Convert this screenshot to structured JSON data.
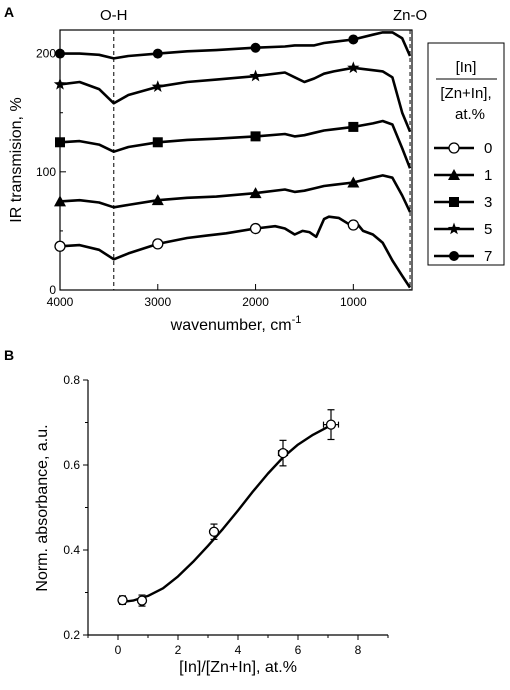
{
  "chart_data": [
    {
      "panel": "A",
      "type": "line",
      "xlabel": "wavenumber, cm",
      "xlabel_sup": "-1",
      "ylabel": "IR transmision, %",
      "xlim": [
        4000,
        400
      ],
      "ylim": [
        0,
        220
      ],
      "xticks": [
        4000,
        3000,
        2000,
        1000
      ],
      "yticks": [
        0,
        100,
        200
      ],
      "annotations": [
        {
          "text": "O-H",
          "x": 3450
        },
        {
          "text": "Zn-O",
          "x": 420
        }
      ],
      "legend": {
        "title_numerator": "[In]",
        "title_denominator": "[Zn+In],",
        "title_unit": "at.%",
        "placement": "right"
      },
      "series": [
        {
          "name": "0",
          "marker": "open-circle",
          "x": [
            4000,
            3800,
            3600,
            3450,
            3300,
            3000,
            2700,
            2500,
            2300,
            2000,
            1800,
            1700,
            1600,
            1520,
            1450,
            1380,
            1300,
            1250,
            1150,
            1050,
            1000,
            950,
            900,
            800,
            700,
            600,
            500,
            420
          ],
          "y": [
            37,
            38,
            34,
            26,
            31,
            39,
            44,
            46,
            48,
            52,
            54,
            52,
            47,
            50,
            49,
            45,
            60,
            62,
            61,
            56,
            55,
            55,
            50,
            47,
            40,
            25,
            12,
            2
          ],
          "marker_x": [
            4000,
            3000,
            2000,
            1000
          ]
        },
        {
          "name": "1",
          "marker": "filled-triangle",
          "x": [
            4000,
            3800,
            3600,
            3450,
            3300,
            3000,
            2700,
            2400,
            2000,
            1700,
            1600,
            1500,
            1400,
            1300,
            1200,
            1000,
            800,
            700,
            600,
            500,
            420
          ],
          "y": [
            75,
            76,
            74,
            70,
            72,
            76,
            78,
            79,
            82,
            85,
            83,
            84,
            86,
            88,
            89,
            91,
            95,
            97,
            95,
            80,
            66
          ],
          "marker_x": [
            4000,
            3000,
            2000,
            1000
          ]
        },
        {
          "name": "3",
          "marker": "filled-square",
          "x": [
            4000,
            3800,
            3600,
            3450,
            3300,
            3000,
            2700,
            2400,
            2000,
            1700,
            1600,
            1500,
            1400,
            1300,
            1200,
            1000,
            800,
            700,
            600,
            500,
            420
          ],
          "y": [
            125,
            126,
            123,
            117,
            121,
            125,
            127,
            128,
            130,
            132,
            130,
            131,
            133,
            135,
            136,
            138,
            141,
            143,
            140,
            120,
            103
          ],
          "marker_x": [
            4000,
            3000,
            2000,
            1000
          ]
        },
        {
          "name": "5",
          "marker": "filled-star",
          "x": [
            4000,
            3800,
            3600,
            3450,
            3300,
            3000,
            2700,
            2400,
            2000,
            1700,
            1600,
            1500,
            1400,
            1300,
            1200,
            1000,
            800,
            700,
            600,
            500,
            420
          ],
          "y": [
            174,
            176,
            170,
            158,
            165,
            172,
            176,
            178,
            181,
            184,
            180,
            176,
            179,
            183,
            185,
            188,
            186,
            185,
            180,
            150,
            134
          ],
          "marker_x": [
            4000,
            3000,
            2000,
            1000
          ]
        },
        {
          "name": "7",
          "marker": "filled-circle",
          "x": [
            4000,
            3800,
            3600,
            3450,
            3300,
            3000,
            2700,
            2400,
            2000,
            1700,
            1600,
            1400,
            1300,
            1200,
            1000,
            800,
            700,
            600,
            500,
            420
          ],
          "y": [
            200,
            200,
            199,
            196,
            198,
            200,
            202,
            203,
            205,
            206,
            207,
            207,
            209,
            210,
            212,
            216,
            218,
            218,
            213,
            198
          ],
          "marker_x": [
            4000,
            3000,
            2000,
            1000
          ]
        }
      ]
    },
    {
      "panel": "B",
      "type": "scatter",
      "xlabel": "[In]/[Zn+In], at.%",
      "ylabel": "Norm. absorbance, a.u.",
      "xlim": [
        -1,
        9
      ],
      "ylim": [
        0.2,
        0.8
      ],
      "xticks": [
        0,
        2,
        4,
        6,
        8
      ],
      "yticks": [
        0.2,
        0.4,
        0.6,
        0.8
      ],
      "points": [
        {
          "x": 0.15,
          "y": 0.282,
          "yerr": 0.01,
          "xerr": 0.1
        },
        {
          "x": 0.8,
          "y": 0.281,
          "yerr": 0.013,
          "xerr": 0.1
        },
        {
          "x": 3.2,
          "y": 0.443,
          "yerr": 0.018,
          "xerr": 0.1
        },
        {
          "x": 5.5,
          "y": 0.628,
          "yerr": 0.03,
          "xerr": 0.15
        },
        {
          "x": 7.1,
          "y": 0.695,
          "yerr": 0.035,
          "xerr": 0.25
        }
      ],
      "fit_curve": {
        "x": [
          0.0,
          0.5,
          1.0,
          1.5,
          2.0,
          2.5,
          3.0,
          3.5,
          4.0,
          4.5,
          5.0,
          5.5,
          6.0,
          6.5,
          7.0,
          7.1
        ],
        "y": [
          0.277,
          0.281,
          0.292,
          0.31,
          0.338,
          0.372,
          0.41,
          0.45,
          0.493,
          0.538,
          0.58,
          0.618,
          0.648,
          0.671,
          0.69,
          0.694
        ]
      }
    }
  ]
}
